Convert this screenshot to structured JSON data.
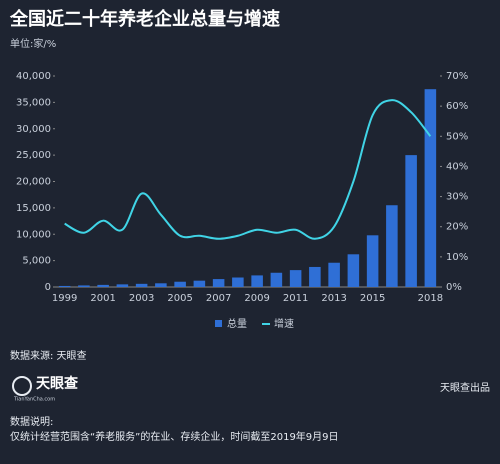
{
  "title": "全国近二十年养老企业总量与增速",
  "unit": "单位:家/%",
  "chart_data": {
    "type": "bar_line",
    "categories": [
      "1999",
      null,
      "2001",
      null,
      "2003",
      null,
      "2005",
      null,
      "2007",
      null,
      "2009",
      null,
      "2011",
      null,
      "2013",
      null,
      "2015",
      null,
      null,
      "2018"
    ],
    "series": [
      {
        "name": "总量",
        "color": "#2f6fd6",
        "values": [
          200,
          300,
          400,
          500,
          600,
          700,
          1000,
          1200,
          1500,
          1800,
          2200,
          2700,
          3200,
          3800,
          4600,
          6200,
          9800,
          15500,
          25000,
          37500
        ]
      },
      {
        "name": "增速",
        "color": "#40d4e6",
        "axis": "y2",
        "values": [
          21,
          18,
          22,
          19,
          31,
          24,
          17,
          17,
          16,
          17,
          19,
          18,
          19,
          16,
          20,
          35,
          57,
          62,
          58,
          50
        ]
      }
    ],
    "ylim": [
      0,
      40000
    ],
    "yticks": [
      0,
      {
        "value": 5000,
        "label": "5,000"
      },
      {
        "value": 10000,
        "label": "10,000"
      },
      {
        "value": 15000,
        "label": "15,000"
      },
      {
        "value": 20000,
        "label": "20,000"
      },
      {
        "value": 25000,
        "label": "25,000"
      },
      {
        "value": 30000,
        "label": "30,000"
      },
      {
        "value": 35000,
        "label": "35,000"
      },
      {
        "value": 40000,
        "label": "40,000"
      }
    ],
    "y2lim": [
      0,
      70
    ],
    "y2ticks": [
      {
        "value": 0,
        "label": "0%"
      },
      {
        "value": 10,
        "label": "10%"
      },
      {
        "value": 20,
        "label": "20%"
      },
      {
        "value": 30,
        "label": "30%"
      },
      {
        "value": 40,
        "label": "40%"
      },
      {
        "value": 50,
        "label": "50%"
      },
      {
        "value": 60,
        "label": "60%"
      },
      {
        "value": 70,
        "label": "70%"
      }
    ],
    "legend": "bottom"
  },
  "source": "数据来源: 天眼查",
  "logo": {
    "name": "天眼查",
    "site": "TianYanCha.com"
  },
  "producer": "天眼查出品",
  "notes": {
    "heading": "数据说明:",
    "text": "仅统计经营范围含“养老服务”的在业、存续企业，时间截至2019年9月9日"
  }
}
